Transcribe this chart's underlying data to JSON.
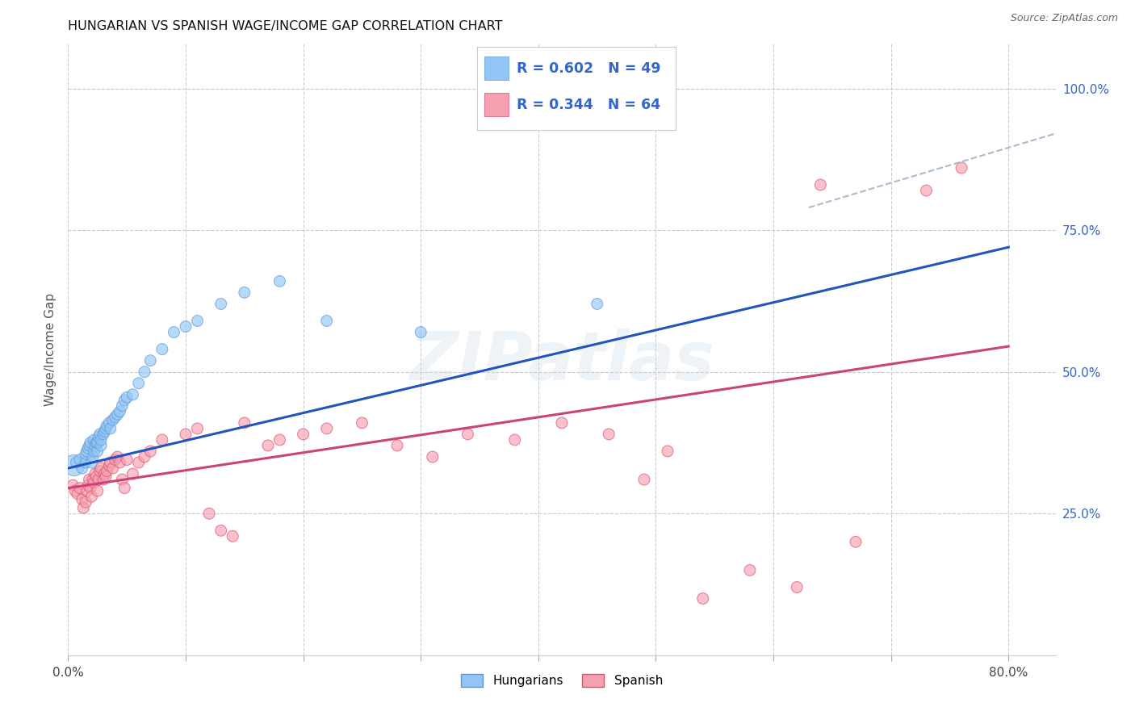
{
  "title": "HUNGARIAN VS SPANISH WAGE/INCOME GAP CORRELATION CHART",
  "source": "Source: ZipAtlas.com",
  "ylabel": "Wage/Income Gap",
  "xlim": [
    0.0,
    0.84
  ],
  "ylim": [
    0.0,
    1.08
  ],
  "xticks": [
    0.0,
    0.1,
    0.2,
    0.3,
    0.4,
    0.5,
    0.6,
    0.7,
    0.8
  ],
  "xticklabels": [
    "0.0%",
    "",
    "",
    "",
    "",
    "",
    "",
    "",
    "80.0%"
  ],
  "yticks_right": [
    0.25,
    0.5,
    0.75,
    1.0
  ],
  "ytick_right_labels": [
    "25.0%",
    "50.0%",
    "75.0%",
    "100.0%"
  ],
  "blue_color": "#92c5f5",
  "blue_edge": "#5b9bd5",
  "pink_color": "#f5a0b0",
  "pink_edge": "#e05070",
  "trend_blue": "#2255bb",
  "trend_pink": "#cc4477",
  "trend_dashed": "#aabbcc",
  "legend_blue_R": "R = 0.602",
  "legend_blue_N": "N = 49",
  "legend_pink_R": "R = 0.344",
  "legend_pink_N": "N = 64",
  "watermark": "ZIPatlas",
  "bg_color": "#ffffff",
  "grid_color": "#cccccc",
  "title_color": "#222222",
  "axis_label_color": "#555555",
  "legend_text_color": "#3366cc",
  "blue_scatter_x": [
    0.005,
    0.007,
    0.01,
    0.012,
    0.015,
    0.015,
    0.016,
    0.017,
    0.018,
    0.019,
    0.02,
    0.021,
    0.022,
    0.022,
    0.023,
    0.024,
    0.025,
    0.025,
    0.026,
    0.027,
    0.028,
    0.028,
    0.03,
    0.031,
    0.032,
    0.033,
    0.035,
    0.036,
    0.038,
    0.04,
    0.042,
    0.044,
    0.046,
    0.048,
    0.05,
    0.055,
    0.06,
    0.065,
    0.07,
    0.08,
    0.09,
    0.1,
    0.11,
    0.13,
    0.15,
    0.18,
    0.22,
    0.3,
    0.45
  ],
  "blue_scatter_y": [
    0.335,
    0.34,
    0.345,
    0.33,
    0.34,
    0.355,
    0.36,
    0.365,
    0.37,
    0.375,
    0.34,
    0.35,
    0.36,
    0.38,
    0.37,
    0.375,
    0.36,
    0.375,
    0.385,
    0.39,
    0.37,
    0.38,
    0.39,
    0.395,
    0.4,
    0.405,
    0.41,
    0.4,
    0.415,
    0.42,
    0.425,
    0.43,
    0.44,
    0.45,
    0.455,
    0.46,
    0.48,
    0.5,
    0.52,
    0.54,
    0.57,
    0.58,
    0.59,
    0.62,
    0.64,
    0.66,
    0.59,
    0.57,
    0.62
  ],
  "blue_scatter_size": [
    350,
    100,
    100,
    100,
    100,
    100,
    100,
    100,
    100,
    100,
    100,
    100,
    100,
    100,
    100,
    100,
    100,
    100,
    100,
    100,
    100,
    100,
    100,
    100,
    100,
    100,
    100,
    100,
    100,
    100,
    100,
    100,
    100,
    100,
    100,
    100,
    100,
    100,
    100,
    100,
    100,
    100,
    100,
    100,
    100,
    100,
    100,
    100,
    100
  ],
  "pink_scatter_x": [
    0.004,
    0.006,
    0.008,
    0.01,
    0.012,
    0.013,
    0.015,
    0.016,
    0.017,
    0.018,
    0.019,
    0.02,
    0.021,
    0.022,
    0.023,
    0.024,
    0.025,
    0.026,
    0.027,
    0.028,
    0.03,
    0.031,
    0.032,
    0.033,
    0.035,
    0.036,
    0.038,
    0.04,
    0.042,
    0.044,
    0.046,
    0.048,
    0.05,
    0.055,
    0.06,
    0.065,
    0.07,
    0.08,
    0.1,
    0.11,
    0.12,
    0.13,
    0.14,
    0.15,
    0.17,
    0.18,
    0.2,
    0.22,
    0.25,
    0.28,
    0.31,
    0.34,
    0.38,
    0.42,
    0.46,
    0.49,
    0.51,
    0.54,
    0.58,
    0.62,
    0.64,
    0.67,
    0.73,
    0.76
  ],
  "pink_scatter_y": [
    0.3,
    0.29,
    0.285,
    0.295,
    0.275,
    0.26,
    0.27,
    0.29,
    0.3,
    0.31,
    0.295,
    0.28,
    0.31,
    0.305,
    0.32,
    0.315,
    0.29,
    0.31,
    0.325,
    0.33,
    0.31,
    0.32,
    0.315,
    0.325,
    0.335,
    0.34,
    0.33,
    0.345,
    0.35,
    0.34,
    0.31,
    0.295,
    0.345,
    0.32,
    0.34,
    0.35,
    0.36,
    0.38,
    0.39,
    0.4,
    0.25,
    0.22,
    0.21,
    0.41,
    0.37,
    0.38,
    0.39,
    0.4,
    0.41,
    0.37,
    0.35,
    0.39,
    0.38,
    0.41,
    0.39,
    0.31,
    0.36,
    0.1,
    0.15,
    0.12,
    0.83,
    0.2,
    0.82,
    0.86
  ],
  "pink_scatter_size": [
    100,
    100,
    100,
    100,
    100,
    100,
    100,
    100,
    100,
    100,
    100,
    100,
    100,
    100,
    100,
    100,
    100,
    100,
    100,
    100,
    100,
    100,
    100,
    100,
    100,
    100,
    100,
    100,
    100,
    100,
    100,
    100,
    100,
    100,
    100,
    100,
    100,
    100,
    100,
    100,
    100,
    100,
    100,
    100,
    100,
    100,
    100,
    100,
    100,
    100,
    100,
    100,
    100,
    100,
    100,
    100,
    100,
    100,
    100,
    100,
    100,
    100,
    100,
    100
  ],
  "blue_line_x": [
    0.0,
    0.8
  ],
  "blue_line_y": [
    0.33,
    0.72
  ],
  "pink_line_x": [
    0.0,
    0.8
  ],
  "pink_line_y": [
    0.295,
    0.545
  ],
  "dashed_line_x": [
    0.63,
    0.855
  ],
  "dashed_line_y": [
    0.79,
    0.93
  ]
}
